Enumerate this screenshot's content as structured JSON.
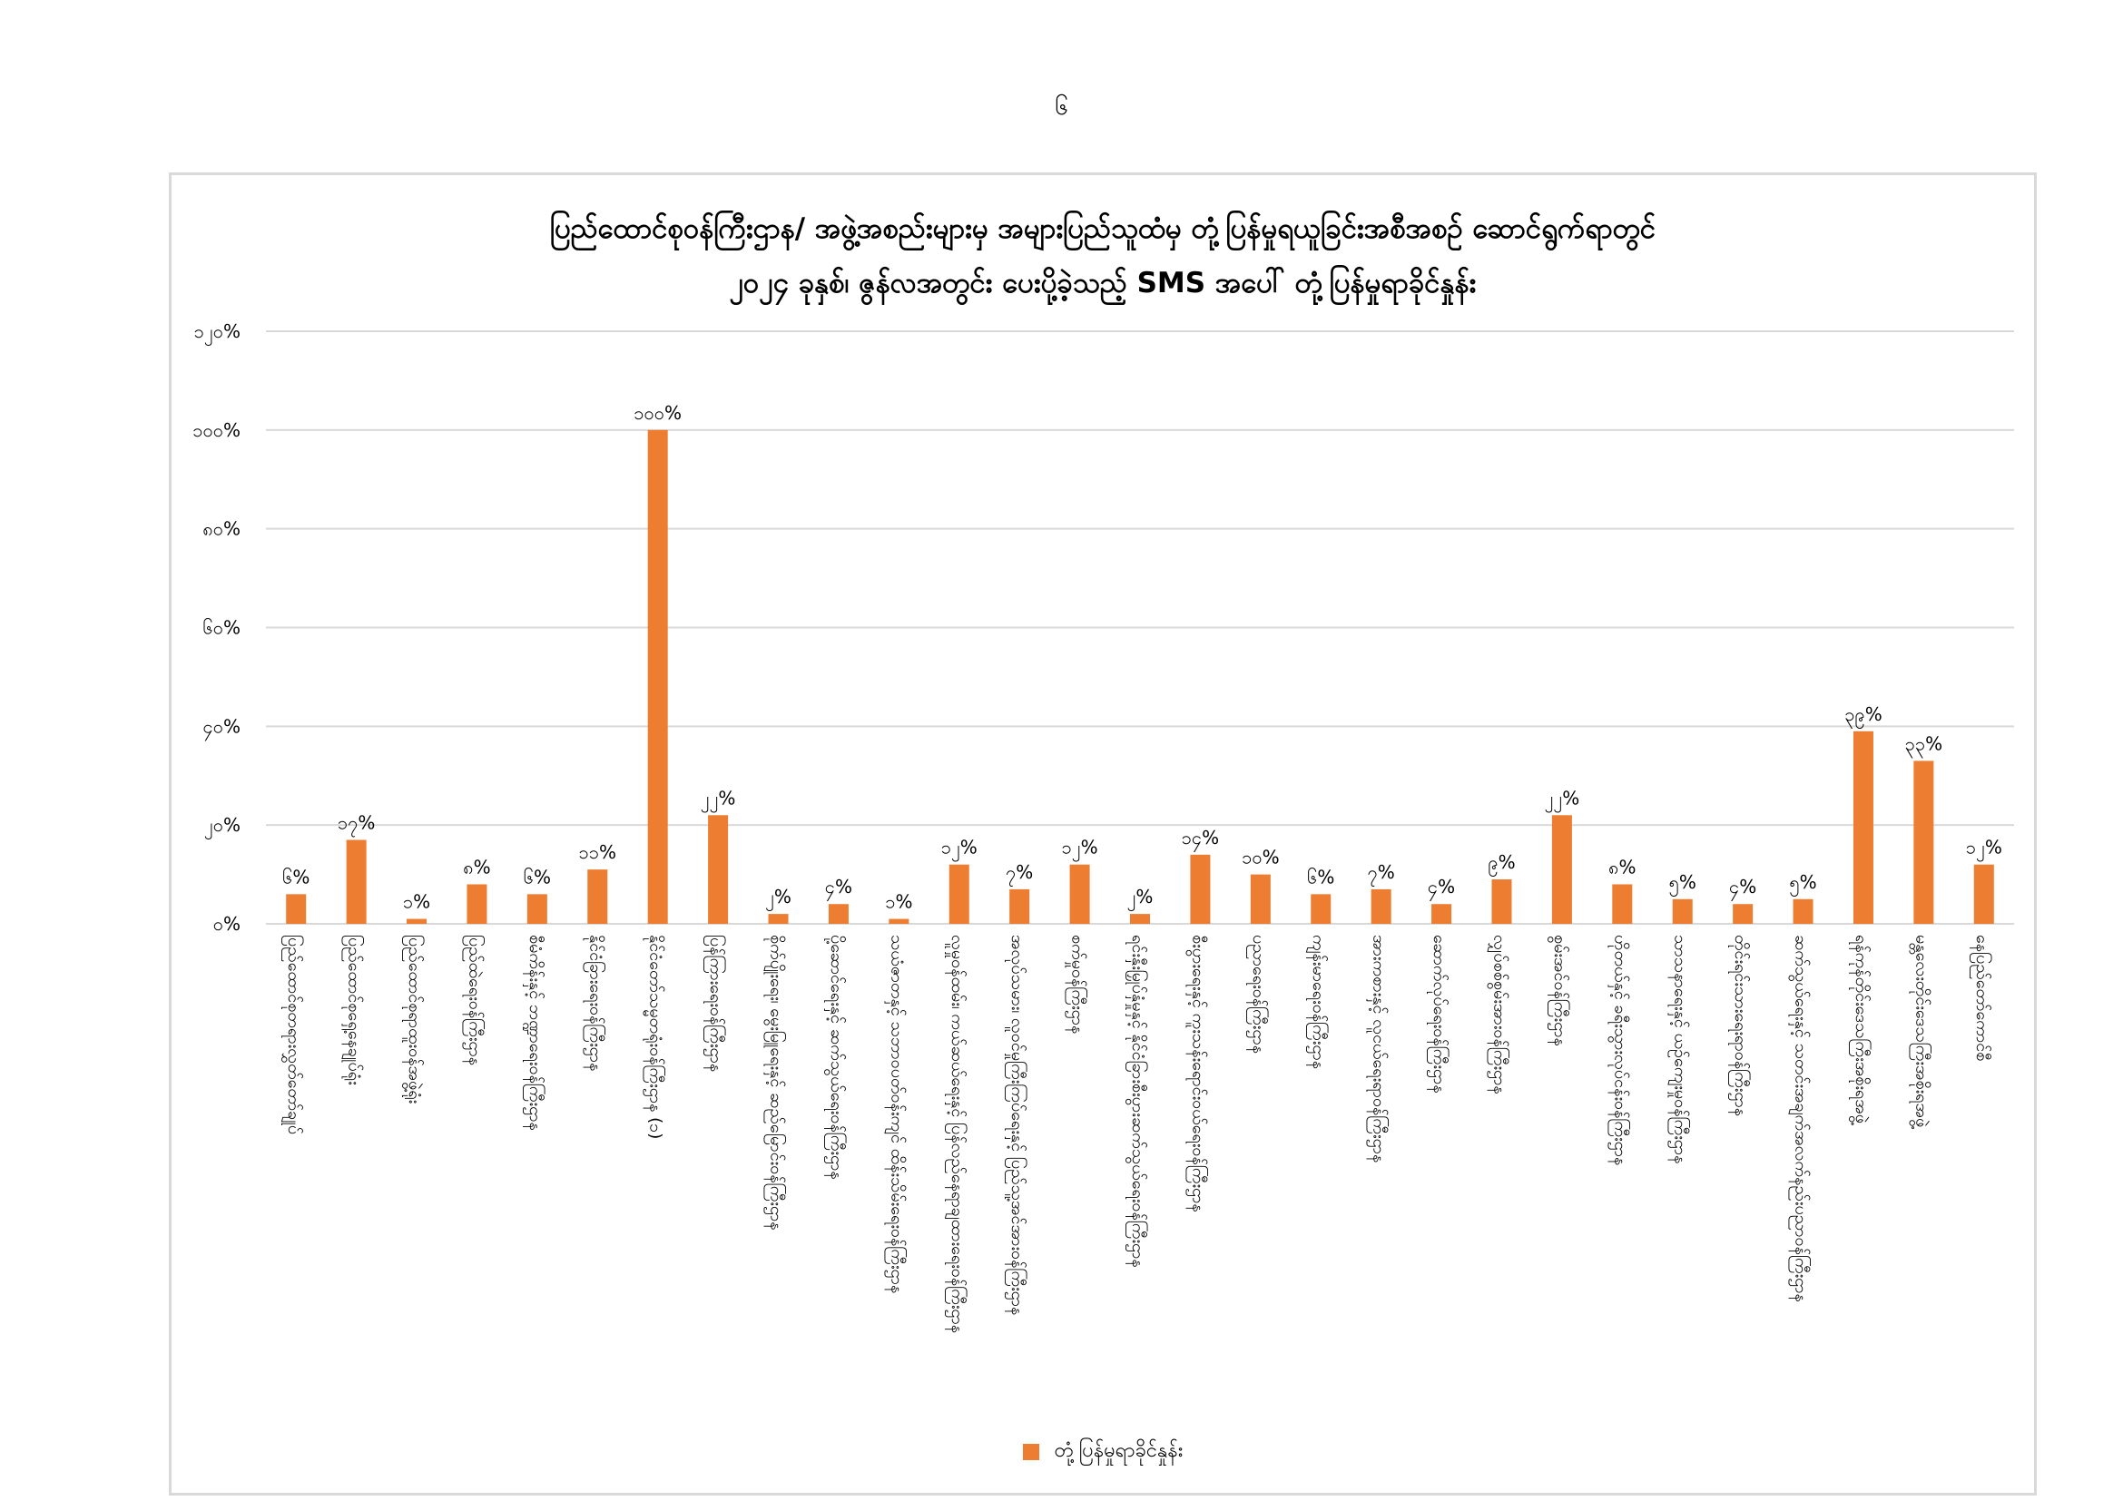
{
  "page": {
    "page_number": "၆"
  },
  "colors": {
    "bar": "#ED7D31",
    "grid": "#D9D9D9",
    "frame": "#D9D9D9",
    "text": "#000000"
  },
  "chart_data": {
    "type": "bar",
    "title_line1": "ပြည်ထောင်စုဝန်ကြီးဌာန/ အဖွဲ့အစည်းများမှ အများပြည်သူထံမှ တုံ့ပြန်မှုရယူခြင်းအစီအစဉ် ဆောင်ရွက်ရာတွင်",
    "title_line2": "၂၀၂၄ ခုနှစ်၊ ဇွန်လအတွင်း ပေးပို့ခဲ့သည့် SMS အပေါ် တုံ့ပြန်မှုရာခိုင်နှုန်း",
    "ylim": [
      0,
      120
    ],
    "yticks": [
      0,
      20,
      40,
      60,
      80,
      100,
      120
    ],
    "ytick_labels": [
      "၀%",
      "၂၀%",
      "၄၀%",
      "၆၀%",
      "၈၀%",
      "၁၀၀%",
      "၁၂၀%"
    ],
    "grid": true,
    "legend_position": "bottom",
    "series": [
      {
        "name": "တုံ့ပြန်မှုရာခိုင်နှုန်း",
        "values": [
          6,
          17,
          1,
          8,
          6,
          11,
          100,
          22,
          2,
          4,
          1,
          12,
          7,
          12,
          2,
          14,
          10,
          6,
          7,
          4,
          9,
          22,
          8,
          5,
          4,
          5,
          39,
          33,
          12
        ],
        "value_labels": [
          "၆%",
          "၁၇%",
          "၁%",
          "၈%",
          "၆%",
          "၁၁%",
          "၁၀၀%",
          "၂၂%",
          "၂%",
          "၄%",
          "၁%",
          "၁၂%",
          "၇%",
          "၁၂%",
          "၂%",
          "၁၄%",
          "၁၀%",
          "၆%",
          "၇%",
          "၄%",
          "၉%",
          "၂၂%",
          "၈%",
          "၅%",
          "၄%",
          "၅%",
          "၃၉%",
          "၃၃%",
          "၁၂%"
        ]
      }
    ],
    "categories": [
      "ပြည်ထောင်စုတရားလွှတ်တော်ချုပ်",
      "ပြည်ထောင်စုရှေ့နေချုပ်ရုံး",
      "ပြည်ထောင်စုရာထူးဝန်အဖွဲ့ရုံး",
      "ပြည်ထဲရေးဝန်ကြီးဌာန",
      "စီမံကိန်းနှင့် ဘဏ္ဍာရေးဝန်ကြီးဌာန",
      "နိုင်ငံခြားရေးဝန်ကြီးဌာန",
      "နိုင်ငံတော်သမ္မတရုံးဝန်ကြီးဌာန (၁)",
      "ပြန်ကြားရေးဝန်ကြီးဌာန",
      "စိုက်ပျိုးရေး၊ မွေးမြူရေးနှင့် ဆည်မြောင်းဝန်ကြီးဌာန",
      "ပို့ဆောင်ရေးနှင့် ဆက်သွယ်ရေးဝန်ကြီးဌာန",
      "သယံဇာတနှင့် သဘာဝပတ်ဝန်းကျင် ထိန်းသိမ်းရေးဝန်ကြီးဌာန",
      "လူမှုဝန်ထမ်း၊ ကယ်ဆယ်ရေးနှင့် ပြန်လည်နေရာချထားရေးဝန်ကြီးဌာန",
      "အလုပ်သမား၊ လူဝင်မှုကြီးကြပ်ရေးနှင့် ပြည်သူ့အင်အားဝန်ကြီးဌာန",
      "စက်မှုဝန်ကြီးဌာန",
      "ရင်းနှီးမြှုပ်နှံမှုနှင့် နိုင်ငံခြားစီးပွားဆက်သွယ်ရေးဝန်ကြီးဌာန",
      "စီးပွားရေးနှင့် ကူးသန်းရောင်းဝယ်ရေးဝန်ကြီးဌာန",
      "ပညာရေးဝန်ကြီးဌာန",
      "ကျန်းမာရေးဝန်ကြီးဌာန",
      "အားကစားနှင့် လူငယ်ရေးရာဝန်ကြီးဌာန",
      "ဆောက်လုပ်ရေးဝန်ကြီးဌာန",
      "လျှပ်စစ်စွမ်းအားဝန်ကြီးဌာန",
      "စွမ်းအင်ဝန်ကြီးဌာန",
      "ဟိုတယ်နှင့် ခရီးသွားလုပ်ငန်းဝန်ကြီးဌာန",
      "သာသနာရေးနှင့် ယဉ်ကျေးမှုဝန်ကြီးဌာန",
      "တိုင်းရင်းသားရေးရာဝန်ကြီးဌာန",
      "ဆက်သွယ်ရေးနှင့် သတင်းအချက်အလက်နည်းပညာဝန်ကြီးဌာန",
      "ရန်ကုန်တိုင်းဒေသကြီးအစိုးရအဖွဲ့",
      "မန္တလေးတိုင်းဒေသကြီးအစိုးရအဖွဲ့",
      "နေပြည်တော်ကောင်စီ"
    ],
    "legend": [
      "တုံ့ပြန်မှုရာခိုင်နှုန်း"
    ]
  }
}
